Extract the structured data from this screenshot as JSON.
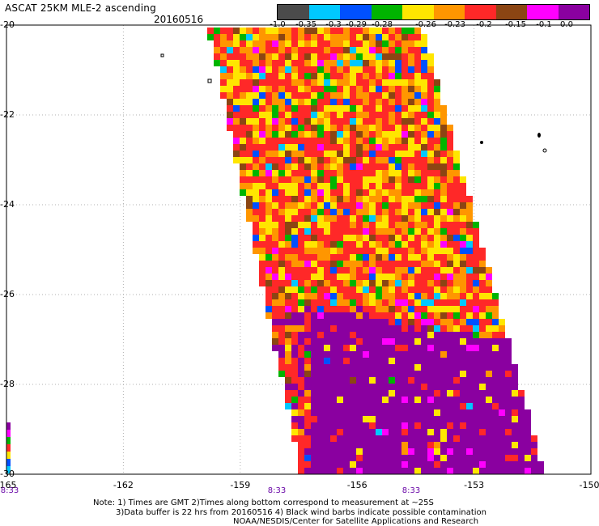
{
  "title": "ASCAT 25KM MLE-2 ascending",
  "date": "20160516",
  "scale": {
    "colors": [
      "#4b4b4b",
      "#00c8ff",
      "#0050ff",
      "#00b400",
      "#ffe600",
      "#ff9600",
      "#ff2828",
      "#8b4513",
      "#ff00ff",
      "#8a00a0"
    ],
    "labels": [
      "-1.0",
      "-0.35",
      "-0.3",
      "-0.29",
      "-0.28",
      "-0.26",
      "-0.23",
      "-0.2",
      "-0.15",
      "-0.1",
      "0.0"
    ]
  },
  "lon_labels": [
    "-165",
    "-162",
    "-159",
    "-156",
    "-153",
    "-150"
  ],
  "lat_labels": [
    "-20",
    "-22",
    "-24",
    "-26",
    "-28",
    "-30"
  ],
  "time_labels": [
    "8:33",
    "8:33",
    "8:33"
  ],
  "notes": [
    "Note: 1) Times are GMT 2)Times along bottom correspond to measurement at ~25S",
    "3)Data buffer is 22 hrs from 20160516 4) Black wind barbs indicate possible contamination",
    "NOAA/NESDIS/Center for Satellite Applications and Research"
  ],
  "colors": {
    "swath_low": "#c000d8",
    "grid": "#b0b0b0"
  }
}
